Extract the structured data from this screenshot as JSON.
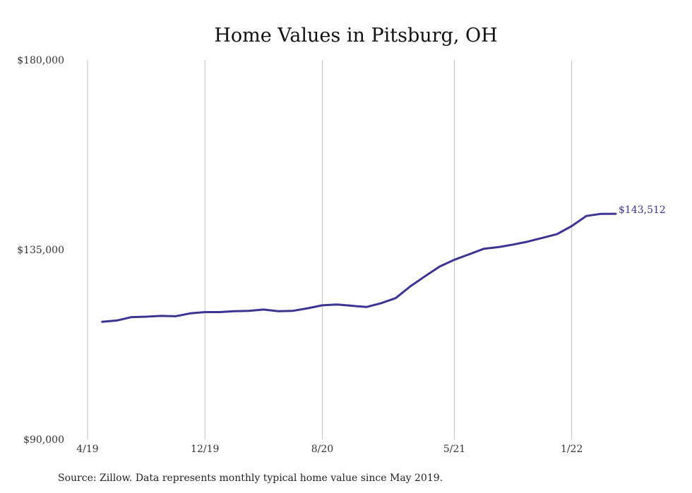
{
  "colors": {
    "line": "#3b3494",
    "grid": "#bfbfbf",
    "text": "#333333"
  },
  "source_note": "Source: Zillow. Data represents monthly typical home value since May 2019.",
  "chart_data": {
    "type": "line",
    "title": "Home Values in Pitsburg, OH",
    "xlabel": "",
    "ylabel": "",
    "grid": "vertical",
    "ylim": [
      90000,
      180000
    ],
    "y_ticks": [
      {
        "value": 90000,
        "label": "$90,000"
      },
      {
        "value": 135000,
        "label": "$135,000"
      },
      {
        "value": 180000,
        "label": "$180,000"
      }
    ],
    "x_ticks": [
      {
        "value": "2019-04",
        "label": "4/19"
      },
      {
        "value": "2019-12",
        "label": "12/19"
      },
      {
        "value": "2020-08",
        "label": "8/20"
      },
      {
        "value": "2021-05",
        "label": "5/21"
      },
      {
        "value": "2022-01",
        "label": "1/22"
      }
    ],
    "xlim": [
      "2019-04",
      "2022-04"
    ],
    "series": [
      {
        "name": "",
        "x": [
          "2019-05",
          "2019-06",
          "2019-07",
          "2019-08",
          "2019-09",
          "2019-10",
          "2019-11",
          "2019-12",
          "2020-01",
          "2020-02",
          "2020-03",
          "2020-04",
          "2020-05",
          "2020-06",
          "2020-07",
          "2020-08",
          "2020-09",
          "2020-10",
          "2020-11",
          "2020-12",
          "2021-01",
          "2021-02",
          "2021-03",
          "2021-04",
          "2021-05",
          "2021-06",
          "2021-07",
          "2021-08",
          "2021-09",
          "2021-10",
          "2021-11",
          "2021-12",
          "2022-01",
          "2022-02",
          "2022-03",
          "2022-04"
        ],
        "values": [
          117900,
          118200,
          119000,
          119100,
          119300,
          119200,
          119900,
          120200,
          120200,
          120400,
          120500,
          120800,
          120400,
          120500,
          121100,
          121800,
          122000,
          121700,
          121400,
          122300,
          123500,
          126300,
          128700,
          131000,
          132600,
          133900,
          135200,
          135600,
          136200,
          136900,
          137800,
          138700,
          140600,
          143000,
          143500,
          143512
        ]
      }
    ],
    "end_label": "$143,512"
  }
}
